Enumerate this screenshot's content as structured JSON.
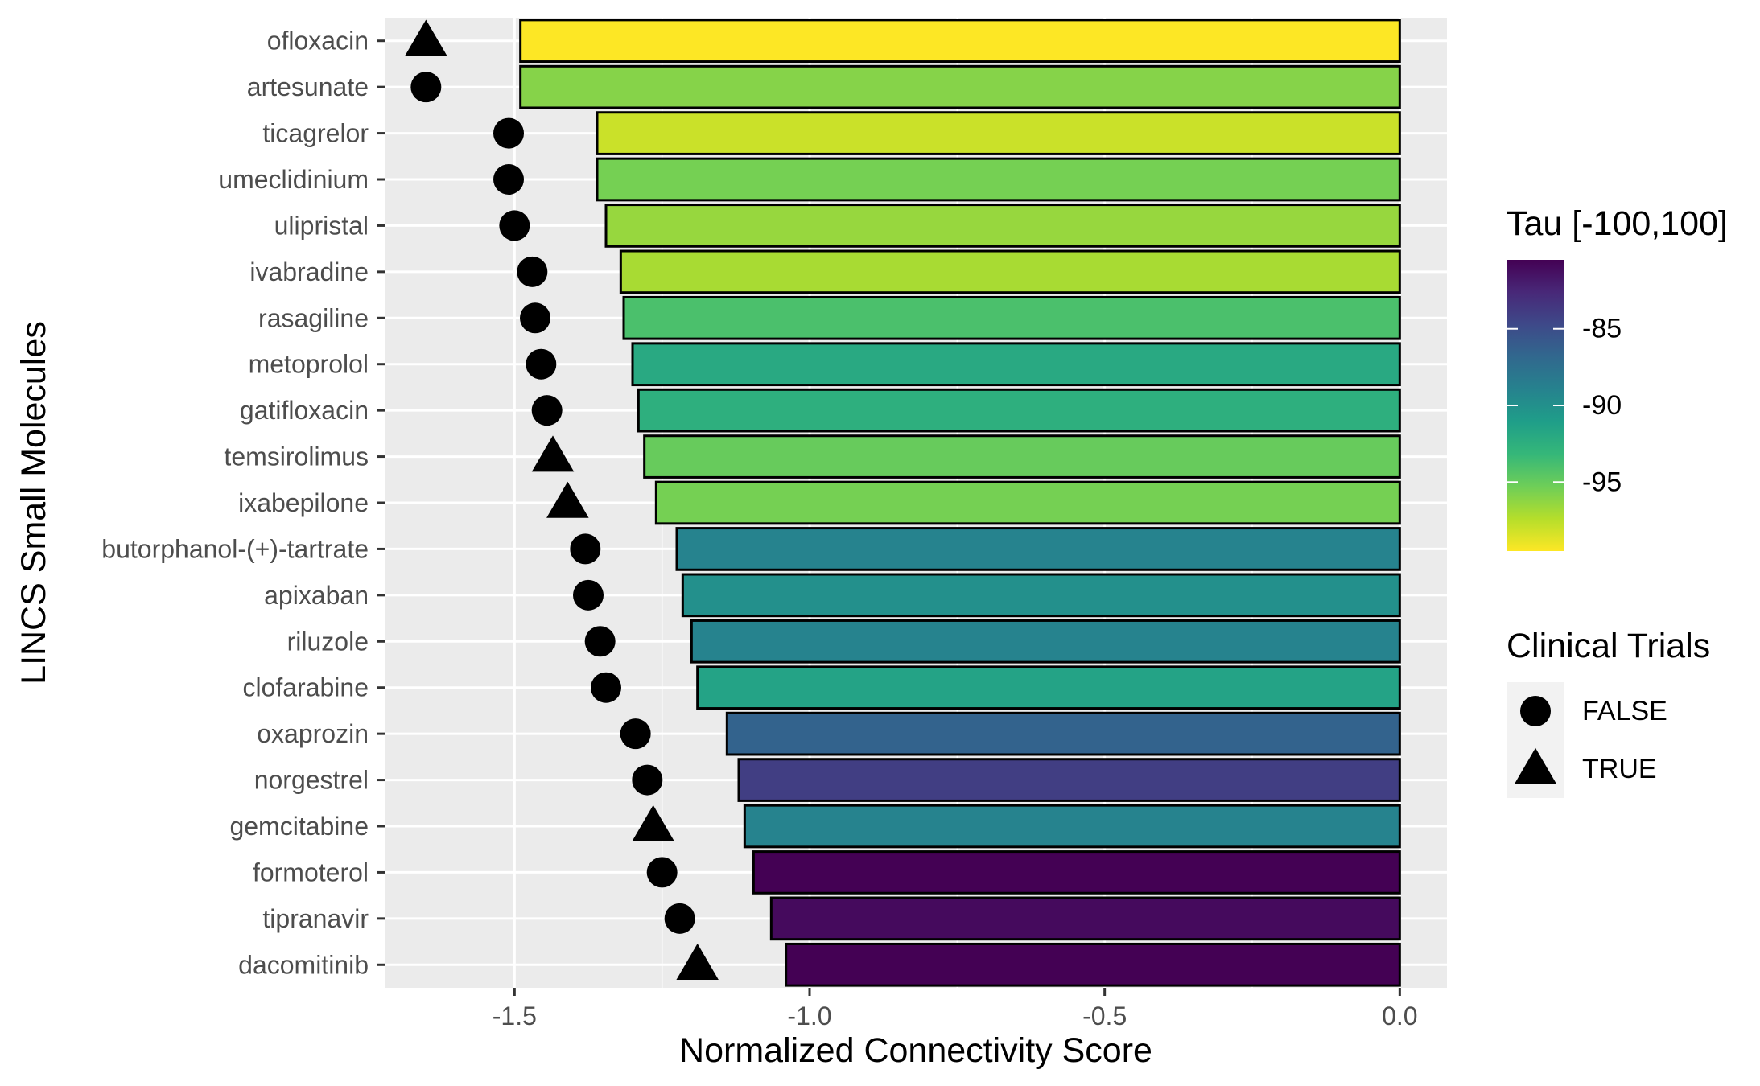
{
  "chart_data": {
    "type": "bar",
    "orientation": "horizontal",
    "title": "",
    "xlabel": "Normalized Connectivity Score",
    "ylabel": "LINCS Small Molecules",
    "xlim": [
      -1.72,
      0.08
    ],
    "xticks": [
      -1.5,
      -1.0,
      -0.5,
      0.0
    ],
    "xtick_labels": [
      "-1.5",
      "-1.0",
      "-0.5",
      "0.0"
    ],
    "grid": true,
    "categories": [
      "ofloxacin",
      "artesunate",
      "ticagrelor",
      "umeclidinium",
      "ulipristal",
      "ivabradine",
      "rasagiline",
      "metoprolol",
      "gatifloxacin",
      "temsirolimus",
      "ixabepilone",
      "butorphanol-(+)-tartrate",
      "apixaban",
      "riluzole",
      "clofarabine",
      "oxaprozin",
      "norgestrel",
      "gemcitabine",
      "formoterol",
      "tipranavir",
      "dacomitinib"
    ],
    "values": [
      -1.49,
      -1.49,
      -1.36,
      -1.36,
      -1.345,
      -1.32,
      -1.315,
      -1.3,
      -1.29,
      -1.28,
      -1.26,
      -1.225,
      -1.215,
      -1.2,
      -1.19,
      -1.14,
      -1.12,
      -1.11,
      -1.095,
      -1.065,
      -1.04
    ],
    "tau": [
      -99.5,
      -96,
      -98,
      -95.5,
      -96.5,
      -97,
      -94,
      -92,
      -92.5,
      -95,
      -95.5,
      -89,
      -90,
      -89,
      -91.5,
      -86.5,
      -84,
      -89,
      -80.5,
      -81,
      -80.5
    ],
    "markers": {
      "x": [
        -1.65,
        -1.65,
        -1.51,
        -1.51,
        -1.5,
        -1.47,
        -1.465,
        -1.455,
        -1.445,
        -1.435,
        -1.41,
        -1.38,
        -1.375,
        -1.355,
        -1.345,
        -1.295,
        -1.275,
        -1.265,
        -1.25,
        -1.22,
        -1.19
      ],
      "clinical_trials": [
        true,
        false,
        false,
        false,
        false,
        false,
        false,
        false,
        false,
        true,
        true,
        false,
        false,
        false,
        false,
        false,
        false,
        true,
        false,
        false,
        true
      ]
    },
    "legend": {
      "placement": "right",
      "colorbar": {
        "title": "Tau [-100,100]",
        "ticks": [
          -85,
          -90,
          -95
        ],
        "tick_labels": [
          "-85",
          "-90",
          "-95"
        ],
        "range": [
          -99.5,
          -80.5
        ],
        "colors": [
          "#FDE725",
          "#B5DE2B",
          "#6ECE58",
          "#35B779",
          "#1F9E89",
          "#26828E",
          "#31688E",
          "#3E4989",
          "#482878",
          "#440154"
        ]
      },
      "shapes": {
        "title": "Clinical Trials",
        "entries": [
          {
            "label": "FALSE",
            "shape": "circle"
          },
          {
            "label": "TRUE",
            "shape": "triangle"
          }
        ]
      }
    },
    "colors": {
      "panel_bg": "#EBEBEB",
      "grid": "#FFFFFF",
      "bar_outline": "#000000",
      "marker": "#000000"
    }
  }
}
